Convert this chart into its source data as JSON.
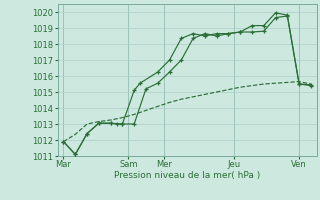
{
  "xlabel": "Pression niveau de la mer( hPa )",
  "background_color": "#cce8df",
  "grid_color": "#aacfc7",
  "line_color": "#2a6e35",
  "ylim": [
    1011,
    1020.5
  ],
  "xlim": [
    0,
    22
  ],
  "xtick_positions": [
    0.5,
    6,
    9,
    15,
    20.5
  ],
  "xtick_labels": [
    "Mar",
    "Sam",
    "Mer",
    "Jeu",
    "Ven"
  ],
  "ytick_positions": [
    1011,
    1012,
    1013,
    1014,
    1015,
    1016,
    1017,
    1018,
    1019,
    1020
  ],
  "vlines": [
    0.5,
    6,
    9,
    15,
    20.5
  ],
  "series1_x": [
    0.5,
    1.5,
    2.5,
    3.5,
    4.5,
    5.0,
    5.5,
    6.5,
    7.0,
    8.5,
    9.5,
    10.5,
    11.5,
    12.5,
    13.5,
    14.5,
    15.5,
    16.5,
    17.5,
    18.5,
    19.5,
    20.5,
    21.5
  ],
  "series1_y": [
    1011.9,
    1011.1,
    1012.4,
    1013.05,
    1013.05,
    1013.0,
    1013.0,
    1015.1,
    1015.55,
    1016.25,
    1017.0,
    1018.35,
    1018.65,
    1018.5,
    1018.65,
    1018.65,
    1018.75,
    1018.75,
    1018.8,
    1019.65,
    1019.75,
    1015.5,
    1015.4
  ],
  "series2_x": [
    0.5,
    1.5,
    2.5,
    3.5,
    4.5,
    5.5,
    6.5,
    7.5,
    8.5,
    9.5,
    10.5,
    11.5,
    12.5,
    13.5,
    14.5,
    15.5,
    16.5,
    17.5,
    18.5,
    19.5,
    20.5,
    21.5
  ],
  "series2_y": [
    1011.9,
    1011.1,
    1012.4,
    1013.05,
    1013.05,
    1013.0,
    1013.0,
    1015.2,
    1015.55,
    1016.25,
    1017.0,
    1018.35,
    1018.65,
    1018.5,
    1018.65,
    1018.75,
    1019.15,
    1019.15,
    1019.95,
    1019.8,
    1015.5,
    1015.45
  ],
  "series3_x": [
    0.5,
    1.5,
    2.5,
    3.5,
    4.5,
    5.5,
    6.5,
    7.5,
    8.5,
    9.5,
    10.5,
    11.5,
    12.5,
    13.5,
    14.5,
    15.5,
    16.5,
    17.5,
    18.5,
    19.5,
    20.5,
    21.5
  ],
  "series3_y": [
    1011.9,
    1012.35,
    1013.0,
    1013.15,
    1013.25,
    1013.4,
    1013.6,
    1013.85,
    1014.1,
    1014.35,
    1014.55,
    1014.7,
    1014.85,
    1015.0,
    1015.15,
    1015.3,
    1015.4,
    1015.5,
    1015.55,
    1015.6,
    1015.65,
    1015.5
  ]
}
